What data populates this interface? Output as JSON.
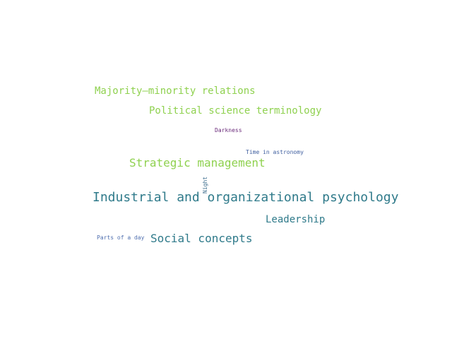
{
  "words": [
    {
      "id": "majority",
      "text": "Majority–minority relations",
      "color": "#8fd14f"
    },
    {
      "id": "political",
      "text": "Political science terminology",
      "color": "#8fd14f"
    },
    {
      "id": "darkness",
      "text": "Darkness",
      "color": "#6a2a7a"
    },
    {
      "id": "time",
      "text": "Time in astronomy",
      "color": "#3f5f9f"
    },
    {
      "id": "strategic",
      "text": "Strategic management",
      "color": "#8fd14f"
    },
    {
      "id": "night",
      "text": "Night",
      "color": "#3f6f8f"
    },
    {
      "id": "industrial",
      "text": "Industrial and organizational psychology",
      "color": "#2f7a8a"
    },
    {
      "id": "leadership",
      "text": "Leadership",
      "color": "#2f7a8a"
    },
    {
      "id": "parts",
      "text": "Parts of a day",
      "color": "#4f6faf"
    },
    {
      "id": "social",
      "text": "Social concepts",
      "color": "#2f7a8a"
    }
  ]
}
